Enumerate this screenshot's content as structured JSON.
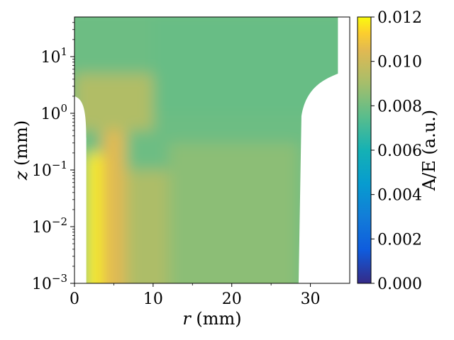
{
  "chart_data": {
    "type": "heatmap",
    "title": "",
    "xlabel": {
      "var": "r",
      "unit": " (mm)"
    },
    "ylabel": {
      "var": "z",
      "unit": " (mm)"
    },
    "xlim": [
      0,
      35
    ],
    "ylim": [
      0.001,
      50
    ],
    "yscale": "log",
    "x_ticks": [
      0,
      10,
      20,
      30
    ],
    "x_tick_labels": [
      "0",
      "10",
      "20",
      "30"
    ],
    "y_ticks": [
      0.001,
      0.01,
      0.1,
      1,
      10
    ],
    "y_tick_labels": [
      {
        "base": "10",
        "exp": "−3"
      },
      {
        "base": "10",
        "exp": "−2"
      },
      {
        "base": "10",
        "exp": "−1"
      },
      {
        "base": "10",
        "exp": "0"
      },
      {
        "base": "10",
        "exp": "1"
      }
    ],
    "colorbar": {
      "label": "A/E (a.u.)",
      "range": [
        0.0,
        0.012
      ],
      "ticks": [
        0.0,
        0.002,
        0.004,
        0.006,
        0.008,
        0.01,
        0.012
      ],
      "tick_labels": [
        "0.000",
        "0.002",
        "0.004",
        "0.006",
        "0.008",
        "0.010",
        "0.012"
      ],
      "colormap": "parula"
    },
    "field_summary": [
      {
        "r_range": [
          1.5,
          3.5
        ],
        "z_range": [
          0.001,
          0.2
        ],
        "value": 0.0118
      },
      {
        "r_range": [
          3.5,
          6.5
        ],
        "z_range": [
          0.001,
          0.5
        ],
        "value": 0.0105
      },
      {
        "r_range": [
          6.5,
          12
        ],
        "z_range": [
          0.001,
          0.1
        ],
        "value": 0.0092
      },
      {
        "r_range": [
          12,
          28.5
        ],
        "z_range": [
          0.001,
          0.3
        ],
        "value": 0.0085
      },
      {
        "r_range": [
          0,
          10
        ],
        "z_range": [
          0.5,
          5
        ],
        "value": 0.0093
      },
      {
        "r_range": [
          10,
          33.5
        ],
        "z_range": [
          1,
          50
        ],
        "value": 0.0078
      }
    ],
    "detector_boundary": {
      "borehole_radius": 1.5,
      "borehole_depth": 2,
      "outer_radius_bottom": 28.5,
      "outer_radius_top": 33.5,
      "corner_top_z": 5
    }
  }
}
